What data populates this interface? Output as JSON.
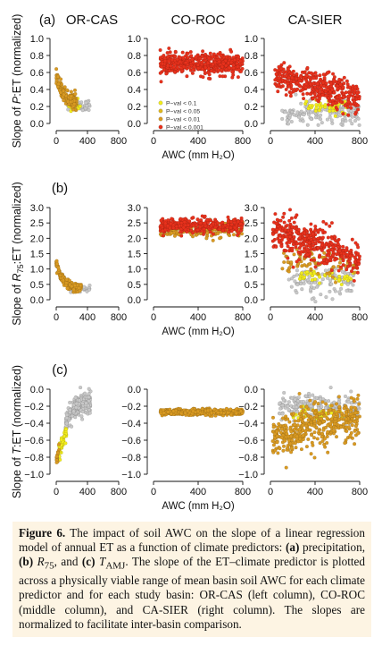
{
  "chart_data": {
    "type": "scatter",
    "columns": [
      "OR-CAS",
      "CO-ROC",
      "CA-SIER"
    ],
    "rows": [
      {
        "tag": "(a)",
        "ylabel_parts": [
          "Slope of ",
          "P",
          ":ET (normalized)"
        ],
        "ylim": [
          0.0,
          1.0
        ],
        "yticks": [
          "0.0",
          "0.2",
          "0.4",
          "0.6",
          "0.8",
          "1.0"
        ],
        "xticks": [
          "0",
          "400",
          "800"
        ],
        "xlabel": "AWC (mm H₂O)"
      },
      {
        "tag": "(b)",
        "ylabel_parts": [
          "Slope of ",
          "R",
          "75",
          ":ET (normalized)"
        ],
        "ylim": [
          0.0,
          3.0
        ],
        "yticks": [
          "0.0",
          "0.5",
          "1.0",
          "1.5",
          "2.0",
          "2.5",
          "3.0"
        ],
        "xticks": [
          "0",
          "400",
          "800"
        ],
        "xlabel": "AWC (mm H₂O)"
      },
      {
        "tag": "(c)",
        "ylabel_parts": [
          "Slope of ",
          "T",
          ":ET (normalized)"
        ],
        "ylim": [
          -1.0,
          0.0
        ],
        "yticks": [
          "−1.0",
          "−0.8",
          "−0.6",
          "−0.4",
          "−0.2",
          "0.0"
        ],
        "xticks": [
          "0",
          "400",
          "800"
        ],
        "xlabel": "AWC (mm H₂O)"
      }
    ],
    "xlim": [
      0,
      800
    ],
    "legend": {
      "placement": "inside CO-ROC panel (a), lower left",
      "entries": [
        "P−val < 0.1",
        "P−val < 0.05",
        "P−val < 0.01",
        "P−val < 0.001"
      ]
    },
    "colors": {
      "not_significant": "#c8c8c8",
      "p_0.1": "#f2ec1c",
      "p_0.05": "#e0b81e",
      "p_0.01": "#d99a22",
      "p_0.001": "#e8311c"
    },
    "panels": {
      "OR-CAS": [
        {
          "class": "p_0.01",
          "xrange": [
            0,
            260
          ],
          "curve": {
            "type": "decay",
            "start": 0.55,
            "end": 0.24,
            "rate": 90
          },
          "spread": 0.045,
          "n": 160
        },
        {
          "class": "p_0.1",
          "xrange": [
            120,
            320
          ],
          "curve": {
            "type": "flat",
            "value": 0.23
          },
          "spread": 0.035,
          "n": 25
        },
        {
          "class": "not_significant",
          "xrange": [
            150,
            430
          ],
          "curve": {
            "type": "flat",
            "value": 0.22
          },
          "spread": 0.035,
          "n": 45
        }
      ],
      "CO-ROC": [
        {
          "class": "p_0.001",
          "xrange": [
            60,
            800
          ],
          "curve": {
            "type": "flat",
            "value": 0.7
          },
          "spread": 0.06,
          "n": 480
        }
      ],
      "CA-SIER": [
        {
          "class": "not_significant",
          "xrange": [
            100,
            800
          ],
          "curve": {
            "type": "flat",
            "value": 0.12
          },
          "spread": 0.07,
          "n": 150
        },
        {
          "class": "p_0.1",
          "xrange": [
            300,
            700
          ],
          "curve": {
            "type": "flat",
            "value": 0.2
          },
          "spread": 0.04,
          "n": 40
        },
        {
          "class": "p_0.001",
          "xrange": [
            40,
            800
          ],
          "curve": {
            "type": "linear",
            "start": 0.55,
            "end": 0.3
          },
          "spread": 0.09,
          "n": 380
        }
      ],
      "OR-CAS_b": [
        {
          "class": "p_0.01",
          "xrange": [
            0,
            320
          ],
          "curve": {
            "type": "decay",
            "start": 1.2,
            "end": 0.38,
            "rate": 80
          },
          "spread": 0.07,
          "n": 170
        },
        {
          "class": "not_significant",
          "xrange": [
            180,
            430
          ],
          "curve": {
            "type": "flat",
            "value": 0.36
          },
          "spread": 0.05,
          "n": 35
        }
      ],
      "CO-ROC_b": [
        {
          "class": "p_0.01",
          "xrange": [
            60,
            800
          ],
          "curve": {
            "type": "flat",
            "value": 2.28
          },
          "spread": 0.12,
          "n": 200
        },
        {
          "class": "p_0.001",
          "xrange": [
            60,
            800
          ],
          "curve": {
            "type": "flat",
            "value": 2.4
          },
          "spread": 0.13,
          "n": 320
        }
      ],
      "CA-SIER_b": [
        {
          "class": "not_significant",
          "xrange": [
            150,
            750
          ],
          "curve": {
            "type": "flat",
            "value": 0.55
          },
          "spread": 0.25,
          "n": 110
        },
        {
          "class": "p_0.1",
          "xrange": [
            250,
            750
          ],
          "curve": {
            "type": "flat",
            "value": 0.75
          },
          "spread": 0.15,
          "n": 40
        },
        {
          "class": "p_0.01",
          "xrange": [
            100,
            800
          ],
          "curve": {
            "type": "linear",
            "start": 1.3,
            "end": 1.1
          },
          "spread": 0.18,
          "n": 80
        },
        {
          "class": "p_0.001",
          "xrange": [
            20,
            800
          ],
          "curve": {
            "type": "linear",
            "start": 2.3,
            "end": 1.35
          },
          "spread": 0.3,
          "n": 400
        }
      ],
      "OR-CAS_c": [
        {
          "class": "not_significant",
          "xrange": [
            120,
            440
          ],
          "curve": {
            "type": "growth",
            "start": -0.42,
            "end": -0.14,
            "rate": 100
          },
          "spread": 0.06,
          "n": 200
        },
        {
          "class": "p_0.1",
          "xrange": [
            30,
            130
          ],
          "curve": {
            "type": "linear",
            "start": -0.75,
            "end": -0.5
          },
          "spread": 0.05,
          "n": 45
        },
        {
          "class": "p_0.01",
          "xrange": [
            0,
            40
          ],
          "curve": {
            "type": "linear",
            "start": -0.85,
            "end": -0.7
          },
          "spread": 0.04,
          "n": 15
        }
      ],
      "CO-ROC_c": [
        {
          "class": "p_0.01",
          "xrange": [
            60,
            800
          ],
          "curve": {
            "type": "flat",
            "value": -0.27
          },
          "spread": 0.018,
          "n": 420
        }
      ],
      "CA-SIER_c": [
        {
          "class": "not_significant",
          "xrange": [
            80,
            800
          ],
          "curve": {
            "type": "flat",
            "value": -0.2
          },
          "spread": 0.07,
          "n": 180
        },
        {
          "class": "p_0.1",
          "xrange": [
            150,
            700
          ],
          "curve": {
            "type": "flat",
            "value": -0.3
          },
          "spread": 0.04,
          "n": 40
        },
        {
          "class": "p_0.01",
          "xrange": [
            20,
            800
          ],
          "curve": {
            "type": "linear",
            "start": -0.55,
            "end": -0.33
          },
          "spread": 0.13,
          "n": 420
        }
      ]
    }
  },
  "caption": {
    "fig_label": "Figure 6.",
    "seg1": " The impact of soil AWC on the slope of a linear regression model of annual ET as a function of climate predictors: ",
    "a_tag": "(a)",
    "seg2": " precipitation, ",
    "b_tag": "(b)",
    "b_symbol": "R",
    "b_sub": "75",
    "seg3": ", and ",
    "c_tag": "(c)",
    "c_symbol": "T",
    "c_sub": "AMJ",
    "seg4": ". The slope of the ET–climate predictor is plotted across a physically viable range of mean basin soil AWC for each climate predictor and for each study basin: OR-CAS (left column), CO-ROC (middle column), and CA-SIER (right column). The slopes are normalized to facilitate inter-basin comparison."
  }
}
